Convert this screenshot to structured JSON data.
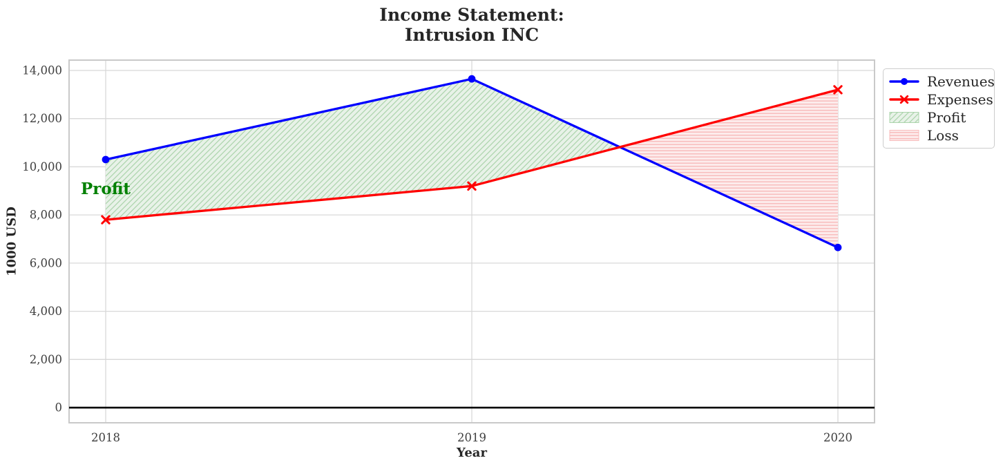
{
  "chart_data": {
    "type": "line",
    "title_line1": "Income Statement:",
    "title_line2": "Intrusion INC",
    "xlabel": "Year",
    "ylabel": "1000 USD",
    "x": [
      2018,
      2019,
      2020
    ],
    "xticklabels": [
      "2018",
      "2019",
      "2020"
    ],
    "series": [
      {
        "name": "Revenues",
        "color": "#0000ff",
        "marker": "circle",
        "values": [
          10300,
          13650,
          6650
        ]
      },
      {
        "name": "Expenses",
        "color": "#ff0000",
        "marker": "x",
        "values": [
          7800,
          9200,
          13200
        ]
      }
    ],
    "areas": [
      {
        "name": "Profit",
        "condition": "revenues_above_expenses",
        "fill": "#e8f2e8",
        "hatch": "diagonal",
        "hatch_color": "#abd4ab"
      },
      {
        "name": "Loss",
        "condition": "expenses_above_revenues",
        "fill": "#fdecec",
        "hatch": "horizontal",
        "hatch_color": "#f8bcbc"
      }
    ],
    "annotation": {
      "text": "Profit",
      "color": "#008000",
      "x": 2018,
      "y": 9100
    },
    "xlim": [
      2017.9,
      2020.1
    ],
    "ylim": [
      -630,
      14430
    ],
    "yticks": [
      0,
      2000,
      4000,
      6000,
      8000,
      10000,
      12000,
      14000
    ],
    "axhline": 0,
    "grid": true,
    "legend_position": "upper-right-outside",
    "colors": {
      "grid": "#d8d8d8",
      "frame": "#c9c9c9",
      "tick_label": "#3d3d3d",
      "text": "#262626",
      "axhline": "#000000"
    }
  }
}
